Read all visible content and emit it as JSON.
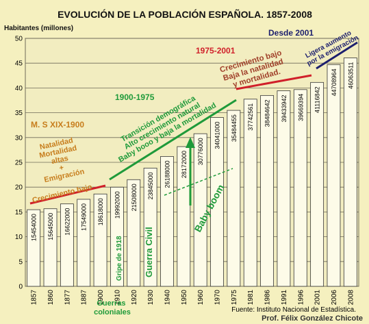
{
  "chart_data": {
    "type": "bar",
    "title": "EVOLUCIÓN DE LA POBLACIÓN ESPAÑOLA. 1857-2008",
    "ylabel": "Habitantes (millones)",
    "xlabel": "",
    "ylim": [
      0,
      50
    ],
    "yticks": [
      0,
      5,
      10,
      15,
      20,
      25,
      30,
      35,
      40,
      45,
      50
    ],
    "grid": true,
    "categories": [
      "1857",
      "1860",
      "1877",
      "1887",
      "1900",
      "1910",
      "1920",
      "1930",
      "1940",
      "1950",
      "1960",
      "1970",
      "1975",
      "1981",
      "1986",
      "1991",
      "1996",
      "2001",
      "2006",
      "2008"
    ],
    "values": [
      15454000,
      15645000,
      16622000,
      17549000,
      18618000,
      19992000,
      21508000,
      23845000,
      26188000,
      28172000,
      30776000,
      34041000,
      35484455,
      37742561,
      38484642,
      39433942,
      39669394,
      41116842,
      44708964,
      46063511
    ],
    "value_labels": [
      "15454000",
      "15645000",
      "16622000",
      "17549000",
      "18618000",
      "19992000",
      "21508000",
      "23845000",
      "26188000",
      "28172000",
      "30776000",
      "34041000",
      "35484455",
      "37742561",
      "38484642",
      "39433942",
      "39669394",
      "41116842",
      "44708964",
      "46063511"
    ],
    "annotations": {
      "m_s_xix": "M. S XIX-1900",
      "natalidad_lines": [
        "Natalidad",
        "Mortalidad",
        "altas"
      ],
      "plus": "+",
      "emigracion": "Emigración",
      "crecimiento_bajo_1": "Crecimiento bajo",
      "period_1900_1975": "1900-1975",
      "transicion_lines": [
        "Transición demográfica",
        "Alto crecimiento natural",
        "Baby booo y baja la mortalidad"
      ],
      "baby_boom": "Baby boom",
      "gripe": "Gripe de 1918",
      "guerra_civil": "Guerra Civil",
      "guerras_coloniales_lines": [
        "Guerras",
        "coloniales"
      ],
      "period_1975_2001": "1975-2001",
      "crecimiento_bajo_2_lines": [
        "Crecimiento bajo",
        "Baja la natalidad",
        "y mortalidad."
      ],
      "desde_2001": "Desde 2001",
      "ligera_lines": [
        "Ligera aumento",
        "por la emigración"
      ]
    },
    "source": "Fuente: Instituto Nacional de Estadística.",
    "author": "Prof. Félix González Chicote"
  },
  "colors": {
    "background": "#f5f0bf",
    "bar": "#fdfbe8",
    "grid": "#6e6a58",
    "orange": "#c77d1c",
    "green": "#1f9a3a",
    "red": "#d0202a",
    "navy": "#1c1f6e",
    "brown": "#a0402a"
  }
}
